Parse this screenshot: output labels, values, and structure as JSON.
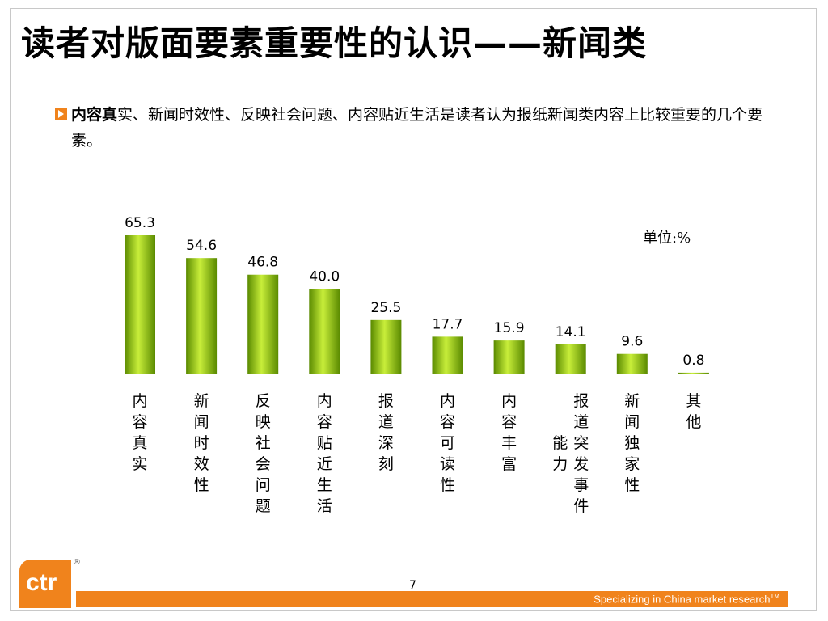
{
  "slide": {
    "title": "读者对版面要素重要性的认识——新闻类",
    "bullet_bold": "内容真",
    "bullet_text": "实、新闻时效性、反映社会问题、内容贴近生活是读者认为报纸新闻类内容上比较重要的几个要素。",
    "unit_label": "单位:%",
    "page_number": "7",
    "footer_text": "Specializing in China market research",
    "footer_tm": "TM",
    "logo_text": "ctr",
    "logo_mark": "®"
  },
  "colors": {
    "accent": "#f0831c",
    "bar_dark": "#5a8a00",
    "bar_light": "#c8ee3a"
  },
  "chart_data": {
    "type": "bar",
    "categories": [
      "内容真实",
      "新闻时效性",
      "反映社会问题",
      "内容贴近生活",
      "报道深刻",
      "内容可读性",
      "内容丰富",
      "报道突发事件能力",
      "新闻独家性",
      "其他"
    ],
    "category_lines": [
      [
        "内容真实"
      ],
      [
        "新闻时效性"
      ],
      [
        "反映社会问题"
      ],
      [
        "内容贴近生活"
      ],
      [
        "报道深刻"
      ],
      [
        "内容可读性"
      ],
      [
        "内容丰富"
      ],
      [
        "能力",
        "报道突发事件"
      ],
      [
        "新闻独家性"
      ],
      [
        "其他"
      ]
    ],
    "values": [
      65.3,
      54.6,
      46.8,
      40.0,
      25.5,
      17.7,
      15.9,
      14.1,
      9.6,
      0.8
    ],
    "value_labels": [
      "65.3",
      "54.6",
      "46.8",
      "40.0",
      "25.5",
      "17.7",
      "15.9",
      "14.1",
      "9.6",
      "0.8"
    ],
    "ylim": [
      0,
      65.3
    ],
    "grid": false,
    "legend": false
  }
}
